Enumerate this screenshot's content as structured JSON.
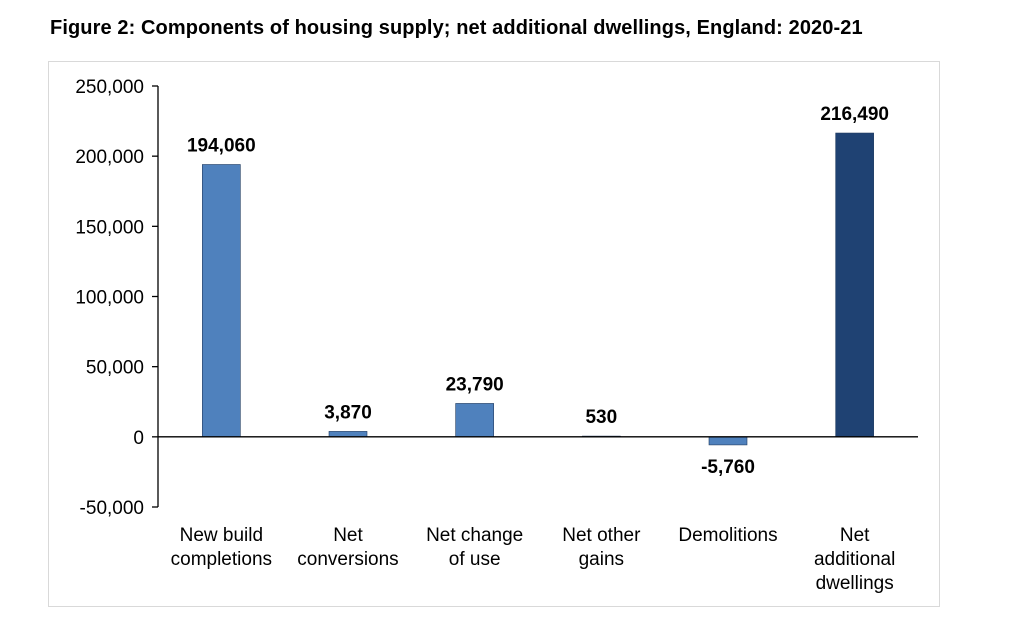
{
  "title": "Figure 2: Components of housing supply; net additional dwellings, England: 2020-21",
  "chart_data": {
    "type": "bar",
    "categories": [
      [
        "New build",
        "completions"
      ],
      [
        "Net",
        "conversions"
      ],
      [
        "Net change",
        "of use"
      ],
      [
        "Net other",
        "gains"
      ],
      [
        "Demolitions"
      ],
      [
        "Net",
        "additional",
        "dwellings"
      ]
    ],
    "values": [
      194060,
      3870,
      23790,
      530,
      -5760,
      216490
    ],
    "data_labels": [
      "194,060",
      "3,870",
      "23,790",
      "530",
      "-5,760",
      "216,490"
    ],
    "yticks": [
      -50000,
      0,
      50000,
      100000,
      150000,
      200000,
      250000
    ],
    "ytick_labels": [
      "-50,000",
      "0",
      "50,000",
      "100,000",
      "150,000",
      "200,000",
      "250,000"
    ],
    "ylim": [
      -50000,
      250000
    ],
    "bar_colors": [
      "#4f81bd",
      "#4f81bd",
      "#4f81bd",
      "#4f81bd",
      "#4f81bd",
      "#1f4273"
    ],
    "grid": false,
    "legend": "none"
  }
}
